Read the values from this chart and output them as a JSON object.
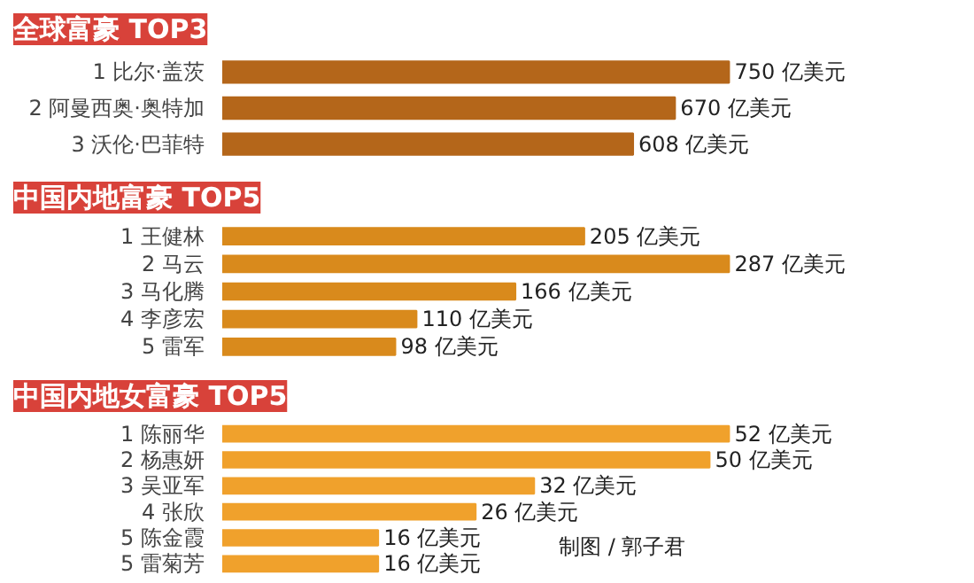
{
  "chart_data": [
    {
      "type": "bar",
      "orientation": "horizontal",
      "title": "全球富豪 TOP3",
      "categories": [
        "1 比尔·盖茨",
        "2 阿曼西奥·奥特加",
        "3 沃伦·巴菲特"
      ],
      "values": [
        750,
        670,
        608
      ],
      "color": "#b4661a",
      "value_labels": [
        "750 亿美元",
        "670 亿美元",
        "608 亿美元"
      ]
    },
    {
      "type": "bar",
      "orientation": "horizontal",
      "title": "中国内地富豪 TOP5",
      "categories": [
        "1 王健林",
        "2 马云",
        "3 马化腾",
        "4 李彦宏",
        "5 雷军"
      ],
      "values": [
        205,
        287,
        166,
        110,
        98
      ],
      "color": "#d98a1c",
      "value_labels": [
        "205 亿美元",
        "287 亿美元",
        "166 亿美元",
        "110 亿美元",
        "98 亿美元"
      ]
    },
    {
      "type": "bar",
      "orientation": "horizontal",
      "title": "中国内地女富豪 TOP5",
      "categories": [
        "1 陈丽华",
        "2 杨惠妍",
        "3 吴亚军",
        "4 张欣",
        "5 陈金霞",
        "5 雷菊芳"
      ],
      "values": [
        52,
        50,
        32,
        26,
        16,
        16
      ],
      "color": "#f0a12c",
      "value_labels": [
        "52 亿美元",
        "50 亿美元",
        "32 亿美元",
        "26 亿美元",
        "16 亿美元",
        "16 亿美元"
      ],
      "annotations": [
        "制图 / 郭子君"
      ]
    }
  ]
}
